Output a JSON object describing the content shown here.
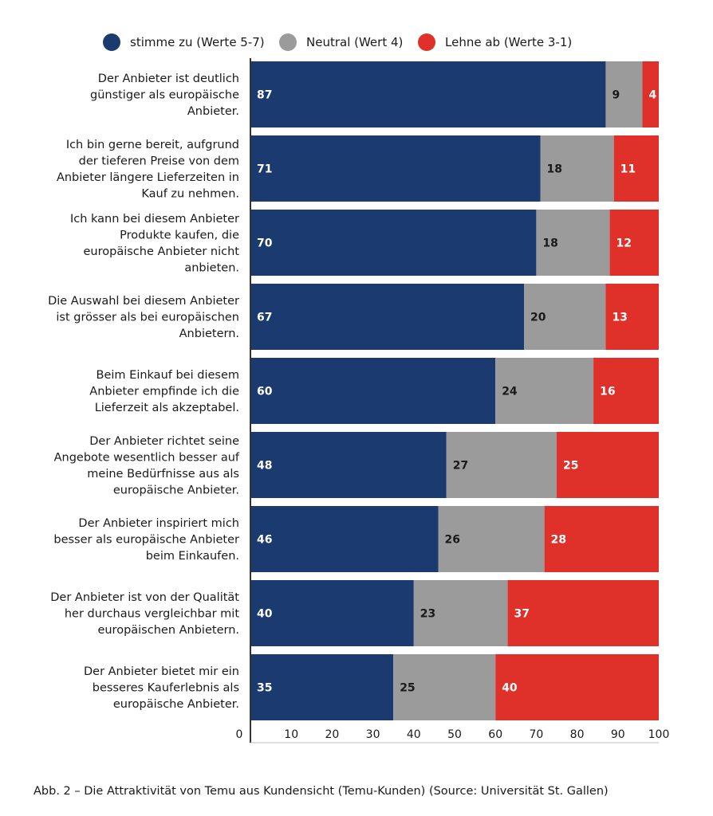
{
  "chart_data": {
    "type": "bar",
    "orientation": "horizontal",
    "stacked": true,
    "categories": [
      "Der Anbieter ist deutlich günstiger als europäische Anbieter.",
      "Ich bin gerne bereit, aufgrund der tieferen Preise von dem Anbieter längere Lieferzeiten in Kauf zu nehmen.",
      "Ich kann bei diesem Anbieter Produkte kaufen, die europäische Anbieter nicht anbieten.",
      "Die Auswahl bei diesem Anbieter ist grösser als bei europäischen Anbietern.",
      "Beim Einkauf bei diesem Anbieter empfinde ich die Lieferzeit als akzeptabel.",
      "Der Anbieter richtet seine Angebote wesentlich besser auf meine Bedürfnisse aus als europäische Anbieter.",
      "Der Anbieter inspiriert mich besser als europäische Anbieter beim Einkaufen.",
      "Der Anbieter ist von der Qualität her durchaus vergleichbar mit europäischen Anbietern.",
      "Der Anbieter bietet mir ein besseres Kauferlebnis als europäische Anbieter."
    ],
    "category_lines": [
      [
        "Der Anbieter ist deutlich",
        "günstiger als europäische",
        "Anbieter."
      ],
      [
        "Ich bin gerne bereit, aufgrund",
        "der tieferen Preise von dem",
        "Anbieter längere Lieferzeiten in",
        "Kauf zu nehmen."
      ],
      [
        "Ich kann bei diesem Anbieter",
        "Produkte kaufen, die",
        "europäische Anbieter nicht",
        "anbieten."
      ],
      [
        "Die Auswahl bei diesem Anbieter",
        "ist grösser als bei europäischen",
        "Anbietern."
      ],
      [
        "Beim Einkauf bei diesem",
        "Anbieter empfinde ich die",
        "Lieferzeit als akzeptabel."
      ],
      [
        "Der Anbieter richtet seine",
        "Angebote wesentlich besser auf",
        "meine Bedürfnisse aus als",
        "europäische Anbieter."
      ],
      [
        "Der Anbieter inspiriert mich",
        "besser als europäische Anbieter",
        "beim Einkaufen."
      ],
      [
        "Der Anbieter ist von der Qualität",
        "her durchaus vergleichbar mit",
        "europäischen Anbietern."
      ],
      [
        "Der Anbieter bietet mir ein",
        "besseres Kauferlebnis als",
        "europäische Anbieter."
      ]
    ],
    "series": [
      {
        "name": "stimme zu (Werte 5-7)",
        "color": "#1b3a6f",
        "label_color": "#ffffff",
        "values": [
          87,
          71,
          70,
          67,
          60,
          48,
          46,
          40,
          35
        ]
      },
      {
        "name": "Neutral (Wert 4)",
        "color": "#9b9b9b",
        "label_color": "#1a1a1a",
        "values": [
          9,
          18,
          18,
          20,
          24,
          27,
          26,
          23,
          25
        ]
      },
      {
        "name": "Lehne ab (Werte 3-1)",
        "color": "#e0302a",
        "label_color": "#ffffff",
        "values": [
          4,
          11,
          12,
          13,
          16,
          25,
          28,
          37,
          40
        ]
      }
    ],
    "xlim": [
      0,
      100
    ],
    "xticks": [
      0,
      10,
      20,
      30,
      40,
      50,
      60,
      70,
      80,
      90,
      100
    ],
    "legend_position": "top",
    "grid": false
  },
  "caption": "Abb. 2 – Die Attraktivität von Temu aus Kundensicht (Temu-Kunden) (Source: Universität St. Gallen)"
}
